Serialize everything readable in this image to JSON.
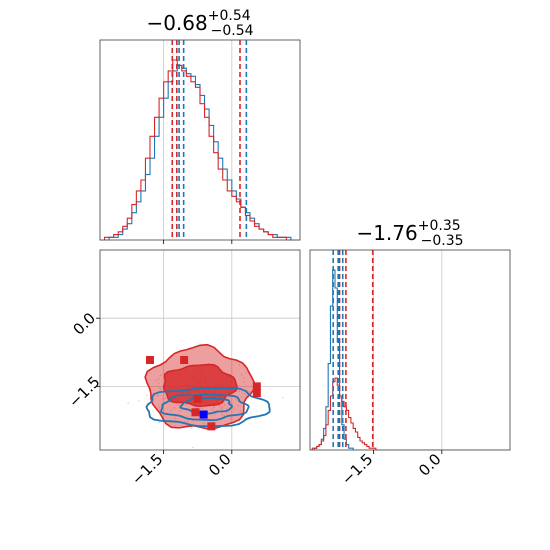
{
  "chart_data": {
    "type": "corner",
    "colors": {
      "red": "#d62728",
      "blue": "#1f77b4"
    },
    "parameters": [
      {
        "title_main": "−0.68",
        "title_plus": "+0.54",
        "title_minus": "−0.54"
      },
      {
        "title_main": "−1.76",
        "title_plus": "+0.35",
        "title_minus": "−0.35"
      }
    ],
    "x_ticks": [
      {
        "value": -1.5,
        "label": "−1.5"
      },
      {
        "value": 0.0,
        "label": "0.0"
      }
    ],
    "y_ticks": [
      {
        "value": 0.0,
        "label": "0.0"
      },
      {
        "value": -1.5,
        "label": "−1.5"
      }
    ],
    "param1_range": [
      -2.9,
      1.5
    ],
    "param2_range": [
      -2.9,
      1.5
    ],
    "hist1": {
      "bin_start": -2.9,
      "bin_width": 0.1,
      "red": [
        0,
        1,
        1,
        2,
        3,
        5,
        8,
        13,
        18,
        22,
        30,
        38,
        45,
        52,
        58,
        62,
        66,
        64,
        62,
        60,
        58,
        56,
        50,
        45,
        38,
        32,
        26,
        22,
        18,
        16,
        14,
        12,
        9,
        7,
        5,
        4,
        3,
        2,
        1,
        1,
        1,
        0,
        0,
        0
      ],
      "blue": [
        0,
        0,
        1,
        1,
        2,
        4,
        6,
        10,
        14,
        18,
        24,
        30,
        38,
        45,
        52,
        58,
        62,
        64,
        63,
        61,
        60,
        57,
        53,
        48,
        42,
        36,
        30,
        26,
        22,
        18,
        15,
        12,
        10,
        8,
        6,
        4,
        3,
        2,
        2,
        1,
        1,
        1,
        0,
        0
      ]
    },
    "hist1_quantiles": {
      "red": [
        -1.31,
        -1.21,
        0.18
      ],
      "blue": [
        -1.16,
        -1.06,
        0.32
      ]
    },
    "hist2": {
      "bin_start": -2.9,
      "bin_width": 0.05,
      "red": [
        0,
        1,
        1,
        2,
        3,
        5,
        8,
        14,
        22,
        30,
        38,
        40,
        36,
        30,
        27,
        24,
        22,
        18,
        15,
        12,
        10,
        7,
        5,
        4,
        3,
        2,
        1,
        1,
        1,
        0,
        0,
        0,
        0,
        0,
        0,
        0,
        0,
        0,
        0,
        0,
        0,
        0,
        0,
        0,
        0,
        0,
        0,
        0,
        0,
        0,
        0,
        0,
        0,
        0,
        0,
        0,
        0,
        0,
        0,
        0,
        0,
        0,
        0,
        0,
        0,
        0,
        0,
        0,
        0,
        0,
        0,
        0,
        0,
        0,
        0,
        0,
        0,
        0,
        0,
        0,
        0,
        0,
        0,
        0,
        0,
        0,
        0,
        0
      ],
      "blue": [
        0,
        0,
        1,
        2,
        3,
        6,
        12,
        24,
        48,
        80,
        100,
        90,
        60,
        30,
        14,
        6,
        3,
        1,
        1,
        0,
        0,
        0,
        0,
        0,
        0,
        0,
        0,
        0,
        0,
        0,
        0,
        0,
        0,
        0,
        0,
        0,
        0,
        0,
        0,
        0,
        0,
        0,
        0,
        0,
        0,
        0,
        0,
        0,
        0,
        0,
        0,
        0,
        0,
        0,
        0,
        0,
        0,
        0,
        0,
        0,
        0,
        0,
        0,
        0,
        0,
        0,
        0,
        0,
        0,
        0,
        0,
        0,
        0,
        0,
        0,
        0,
        0,
        0,
        0,
        0,
        0,
        0,
        0,
        0,
        0,
        0,
        0,
        0
      ]
    },
    "hist2_quantiles": {
      "red": [
        -2.25,
        -2.11,
        -1.52
      ],
      "blue": [
        -2.39,
        -2.28,
        -2.18
      ]
    },
    "red_contours": [
      {
        "center": [
          -0.7,
          -1.55
        ],
        "radii": [
          1.15,
          0.9
        ],
        "fill_opacity": 0.45
      },
      {
        "center": [
          -0.72,
          -1.48
        ],
        "radii": [
          0.8,
          0.45
        ],
        "fill_opacity": 0.8
      }
    ],
    "blue_contours": [
      {
        "center": [
          -0.55,
          -1.95
        ],
        "radii": [
          1.35,
          0.42
        ]
      },
      {
        "center": [
          -0.6,
          -1.95
        ],
        "radii": [
          0.95,
          0.28
        ]
      },
      {
        "center": [
          -0.55,
          -1.92
        ],
        "radii": [
          0.55,
          0.17
        ]
      }
    ],
    "red_markers": [
      {
        "x": -1.8,
        "y": -0.92
      },
      {
        "x": -1.05,
        "y": -0.92
      },
      {
        "x": 0.55,
        "y": -1.5
      },
      {
        "x": 0.55,
        "y": -1.65
      },
      {
        "x": -0.75,
        "y": -1.78
      },
      {
        "x": -0.8,
        "y": -2.07
      },
      {
        "x": -0.45,
        "y": -2.38
      }
    ],
    "blue_markers": [
      {
        "x": -0.62,
        "y": -2.12
      }
    ]
  }
}
